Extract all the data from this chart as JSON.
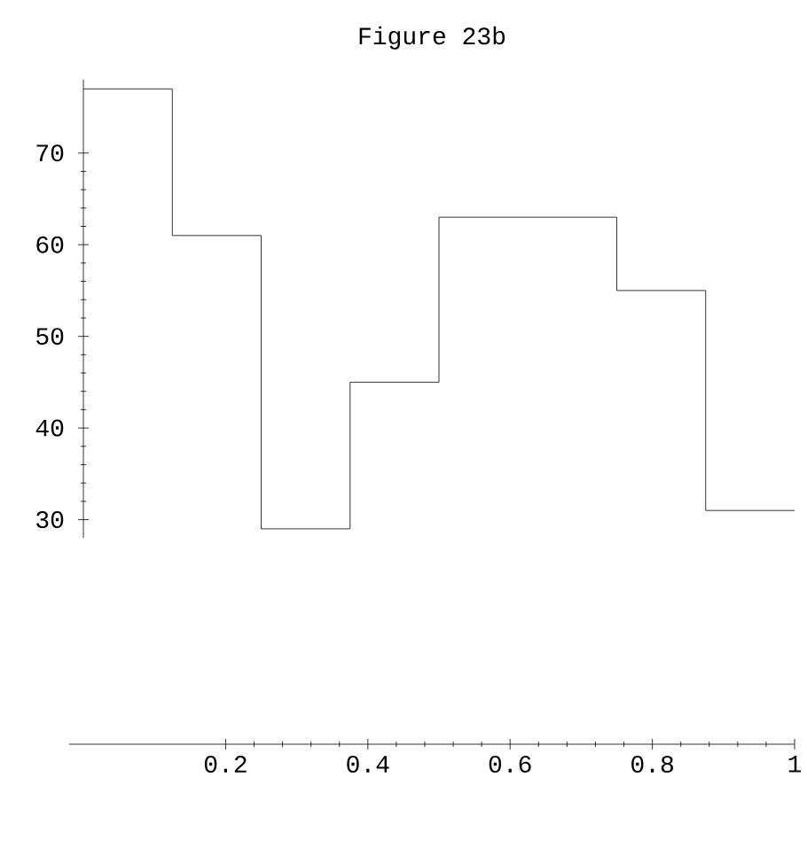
{
  "chart_data": {
    "type": "step",
    "title": "Figure 23b",
    "x": [
      0,
      0.125,
      0.25,
      0.375,
      0.5,
      0.625,
      0.75,
      0.875,
      1
    ],
    "values": [
      77,
      61,
      29,
      45,
      63,
      63,
      55,
      31,
      31
    ],
    "color": "#000000",
    "xlim": [
      -0.02,
      1
    ],
    "ylim": [
      5.5,
      78
    ],
    "xticks": [
      0.2,
      0.4,
      0.6,
      0.8,
      1
    ],
    "yticks": [
      30,
      40,
      50,
      60,
      70
    ]
  }
}
